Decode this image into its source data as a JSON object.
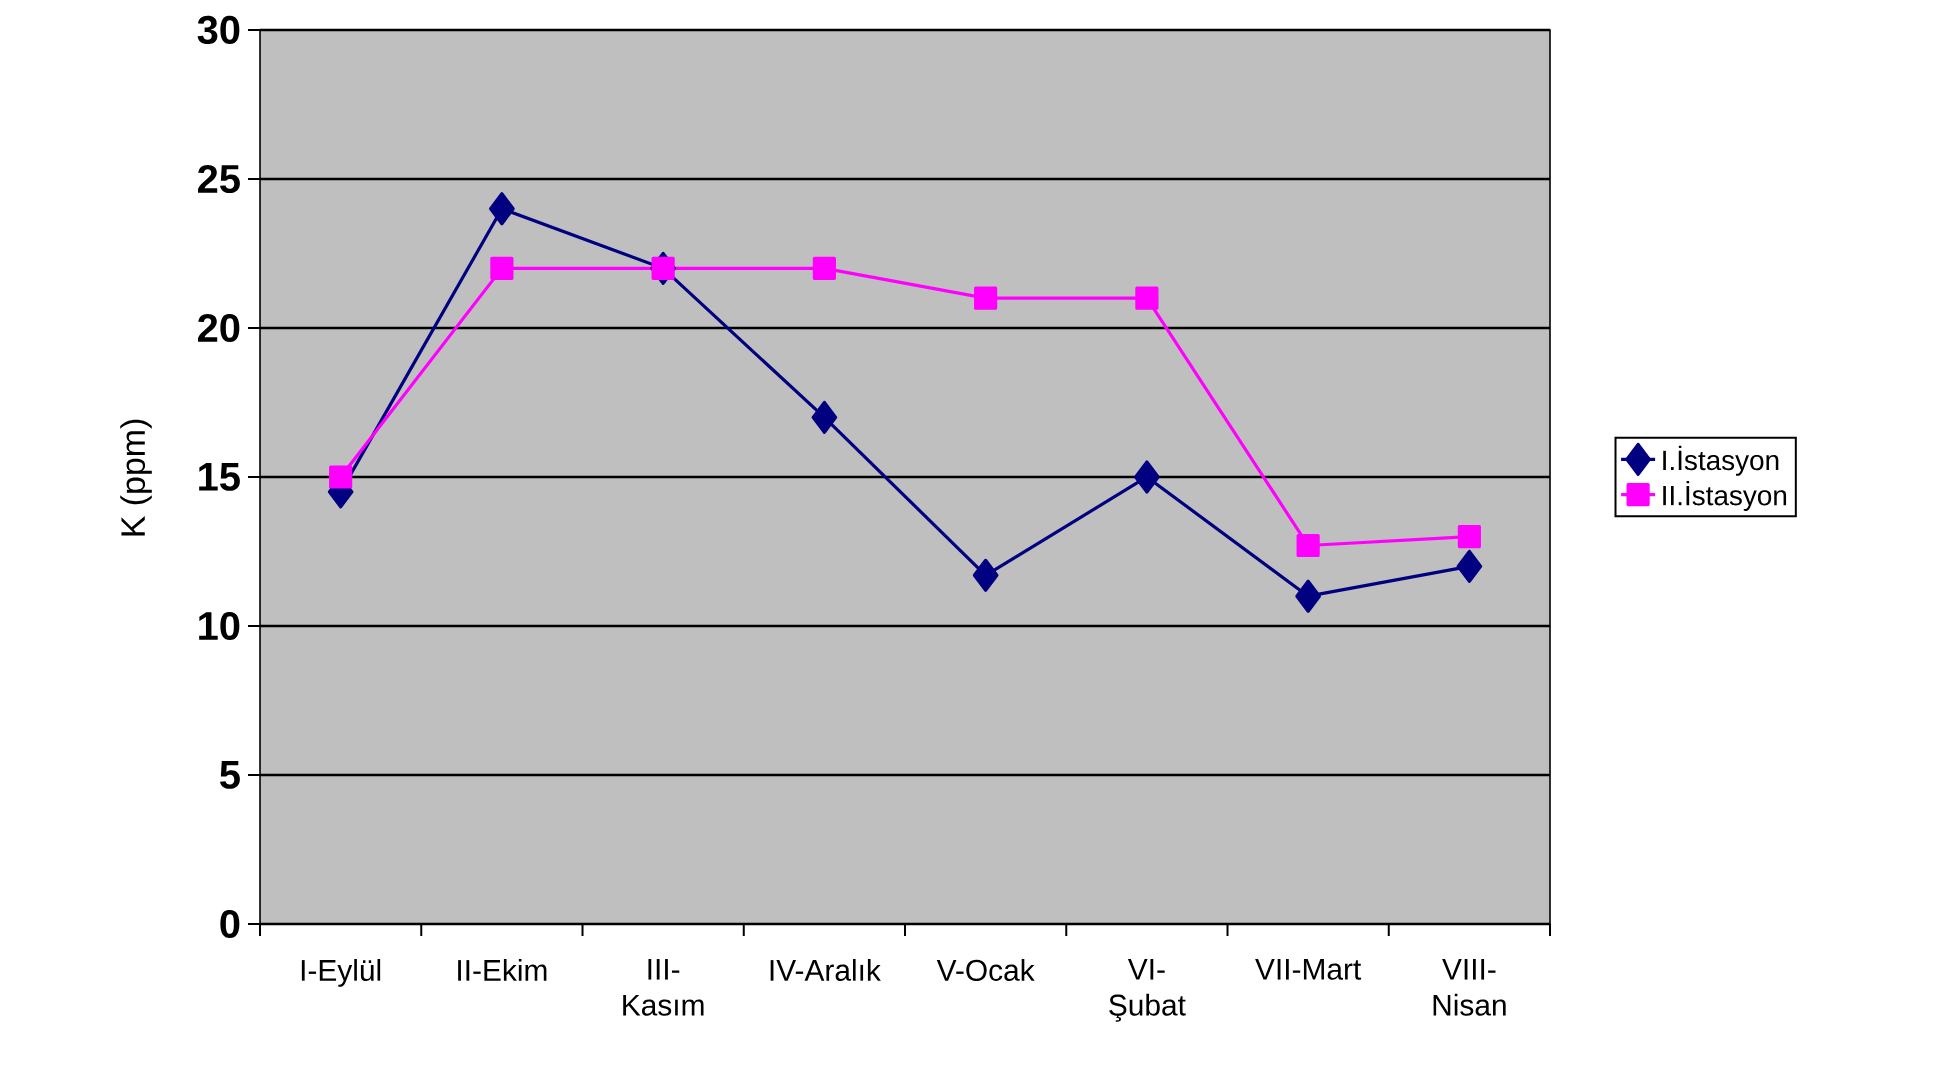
{
  "chart_data": {
    "type": "line",
    "ylabel": "K (ppm)",
    "categories": [
      "I-Eylül",
      "II-Ekim",
      "III-Kasım",
      "IV-Aralık",
      "V-Ocak",
      "VI-Şubat",
      "VII-Mart",
      "VIII-Nisan"
    ],
    "series": [
      {
        "name": "I.İstasyon",
        "color": "#000080",
        "marker": "diamond",
        "values": [
          14.5,
          24,
          22,
          17,
          11.7,
          15,
          11,
          12
        ]
      },
      {
        "name": "II.İstasyon",
        "color": "#ff00ff",
        "marker": "square",
        "values": [
          15,
          22,
          22,
          22,
          21,
          21,
          12.7,
          13
        ]
      }
    ],
    "ylim": [
      0,
      30
    ],
    "yticks": [
      0,
      5,
      10,
      15,
      20,
      25,
      30
    ],
    "grid": "y",
    "legend": "right"
  }
}
